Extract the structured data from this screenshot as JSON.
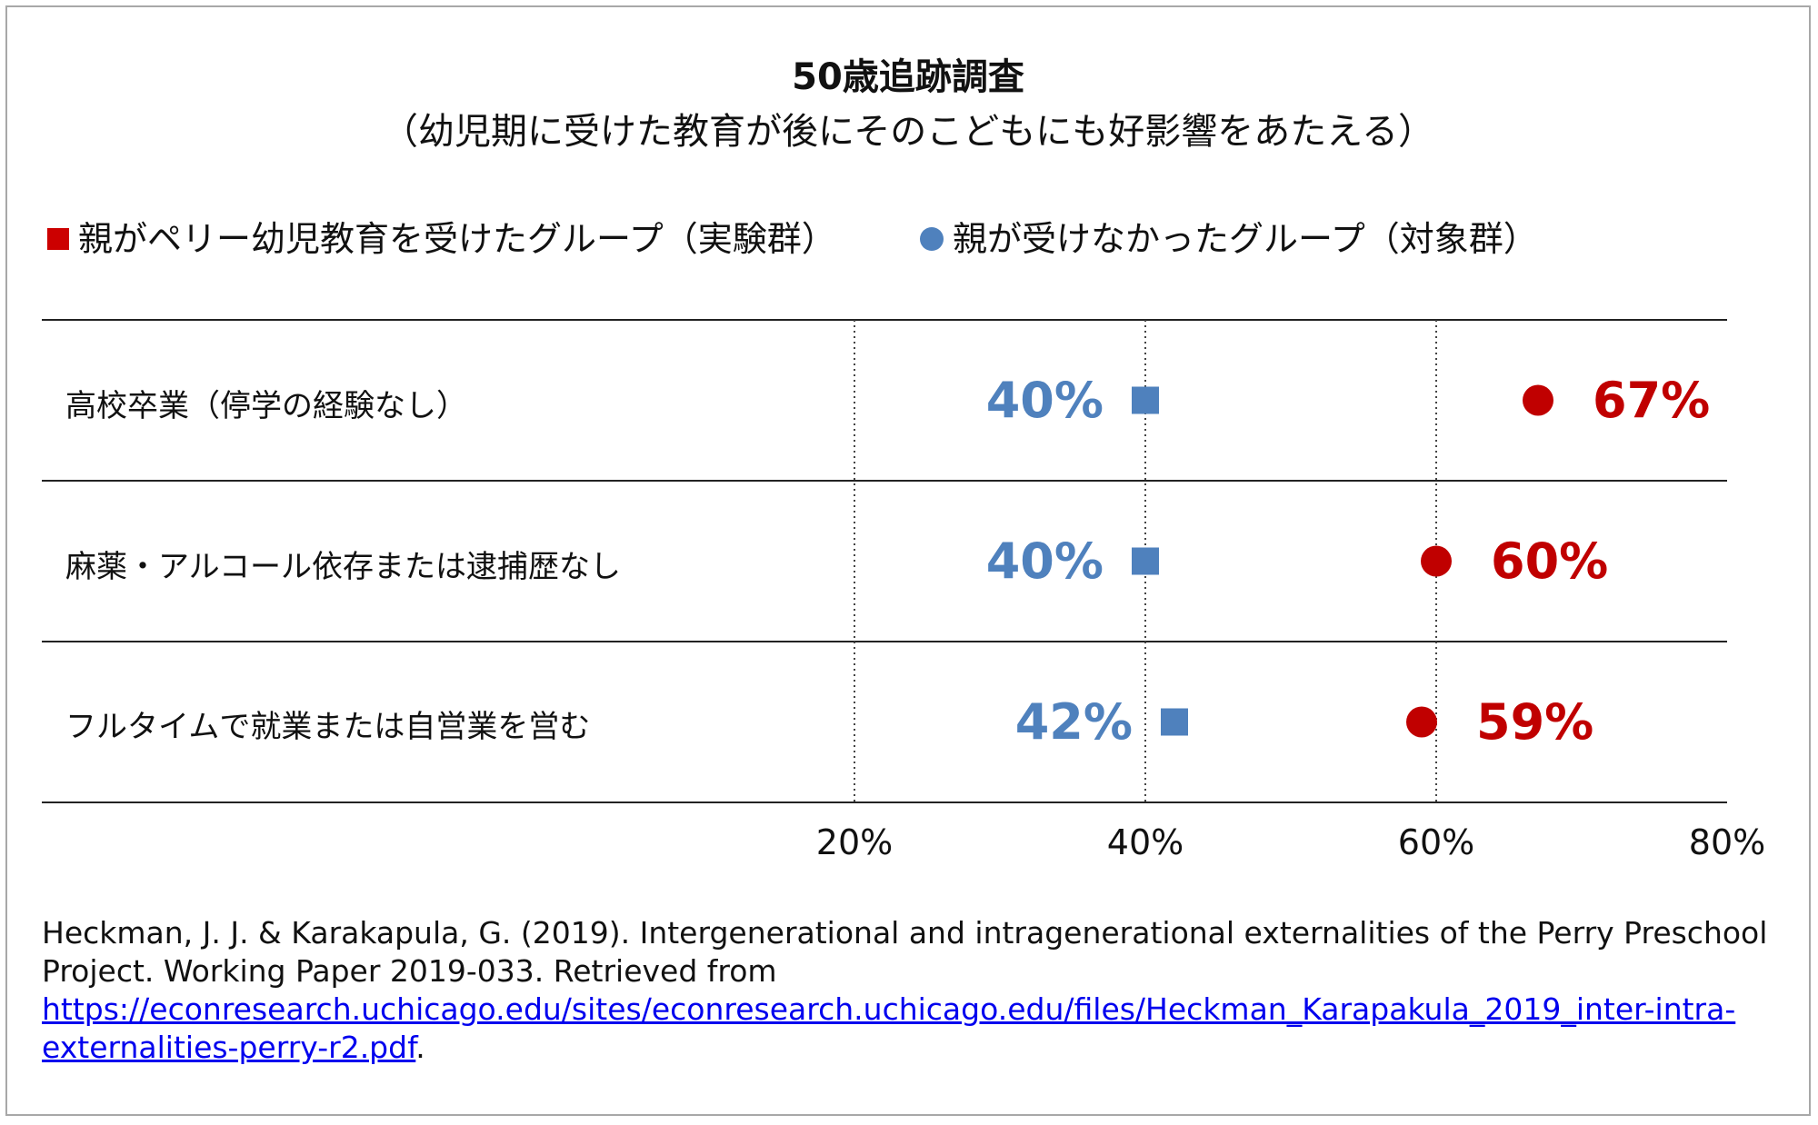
{
  "chart_data": {
    "type": "scatter",
    "title": "50歳追跡調査",
    "subtitle": "（幼児期に受けた教育が後にそのこどもにも好影響をあたえる）",
    "legend": [
      {
        "marker": "■",
        "label": "親がペリー幼児教育を受けたグループ（実験群）"
      },
      {
        "marker": "●",
        "label": "親が受けなかったグループ（対象群）"
      }
    ],
    "categories": [
      "高校卒業（停学の経験なし）",
      "麻薬・アルコール依存または逮捕歴なし",
      "フルタイムで就業または自営業を営む"
    ],
    "series": [
      {
        "marker": "square",
        "color": "#4f81bd",
        "values": [
          40,
          40,
          42
        ],
        "labels": [
          "40%",
          "40%",
          "42%"
        ]
      },
      {
        "marker": "circle",
        "color": "#c00000",
        "values": [
          67,
          60,
          59
        ],
        "labels": [
          "67%",
          "60%",
          "59%"
        ]
      }
    ],
    "xlim": [
      20,
      80
    ],
    "xticks": [
      "20%",
      "40%",
      "60%",
      "80%"
    ],
    "gridlines": "dotted"
  },
  "colors": {
    "red_legend": "#cc0000",
    "blue_legend": "#4f81bd"
  },
  "citation": {
    "text": "Heckman, J. J. & Karakapula, G. (2019). Intergenerational and intragenerational externalities of the Perry Preschool Project. Working Paper 2019-033. Retrieved from",
    "url": "https://econresearch.uchicago.edu/sites/econresearch.uchicago.edu/files/Heckman_Karapakula_2019_inter-intra-externalities-perry-r2.pdf",
    "trailing": "."
  }
}
